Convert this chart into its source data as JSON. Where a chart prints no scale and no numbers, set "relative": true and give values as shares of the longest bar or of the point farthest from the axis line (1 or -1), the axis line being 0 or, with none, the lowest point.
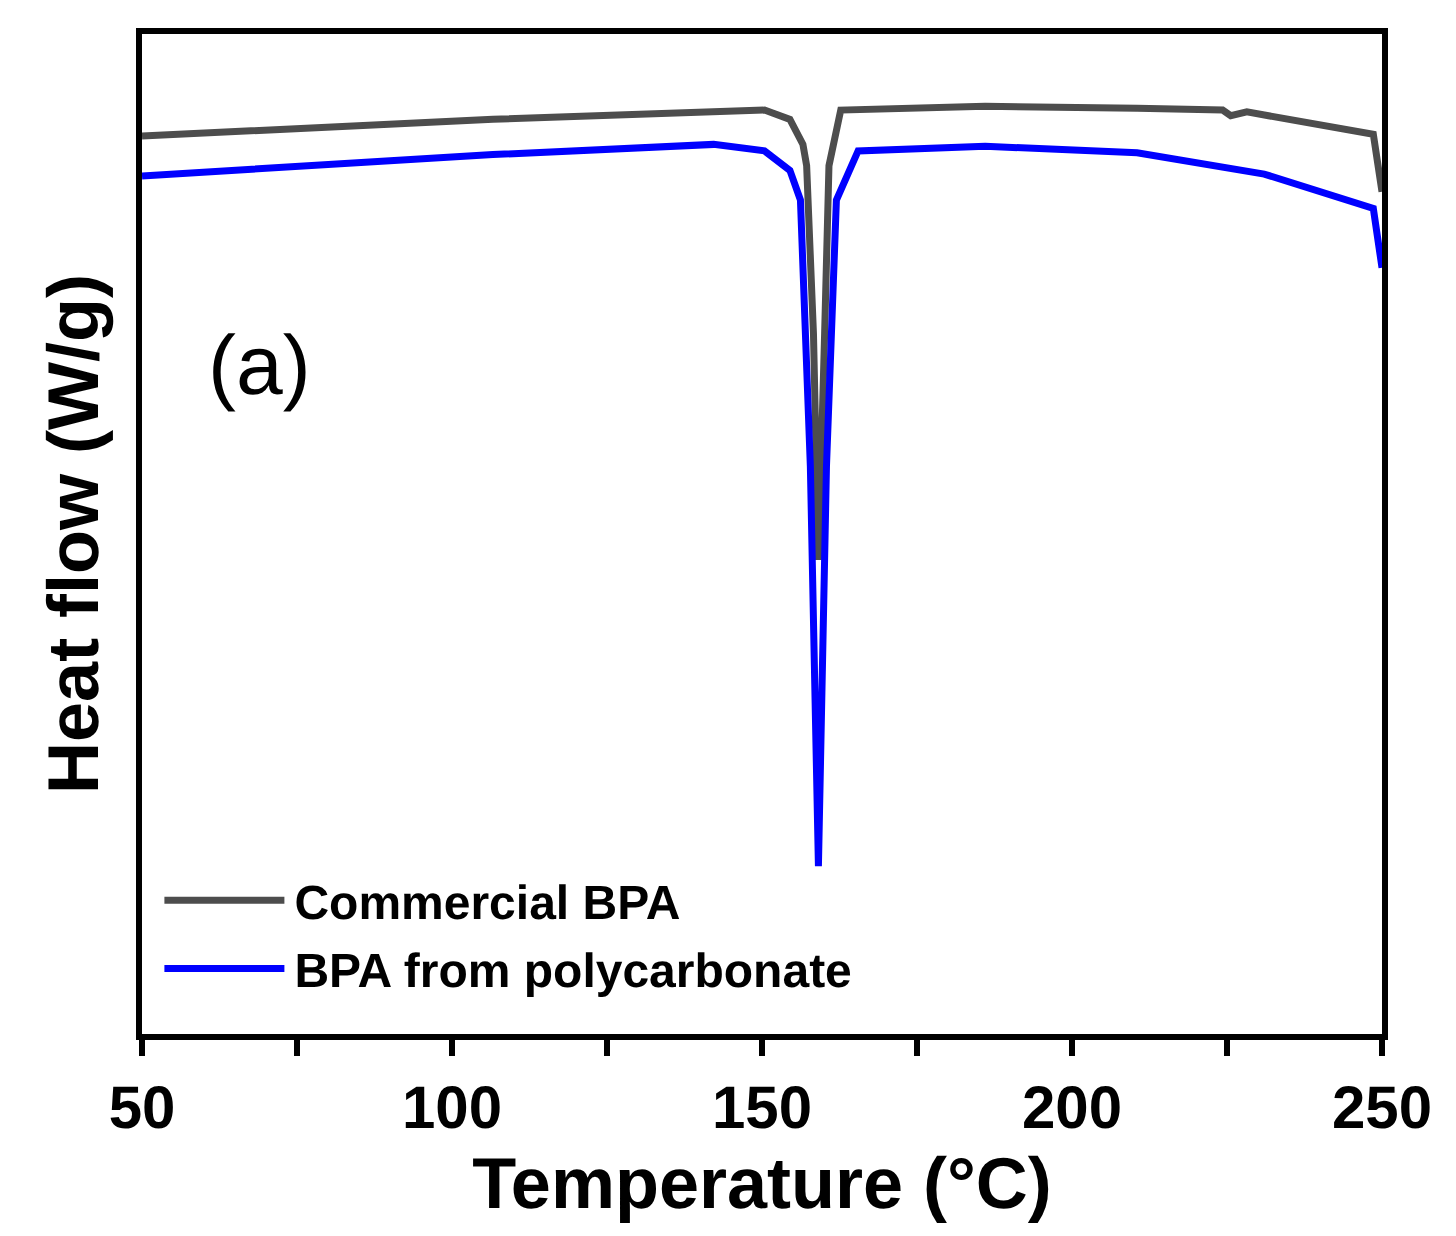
{
  "chart_data": {
    "type": "line",
    "relative": true,
    "xlabel": "Temperature (°C)",
    "ylabel": "Heat flow (W/g)",
    "annotations": [
      "(a)"
    ],
    "xlim": [
      50,
      250
    ],
    "xticks": [
      50,
      {
        "value": 75,
        "label": null
      },
      100,
      {
        "value": 125,
        "label": null
      },
      150,
      {
        "value": 175,
        "label": null
      },
      200,
      {
        "value": 225,
        "label": null
      },
      250
    ],
    "series": [
      {
        "name": "Commercial BPA",
        "color": "#4d4d4d",
        "x": [
          50,
          106.6,
          150.4,
          154.5,
          156.6,
          157.2,
          158.3,
          159.1,
          160.1,
          160.8,
          162.7,
          186,
          210.5,
          224.3,
          225.6,
          228.2,
          248.6,
          250
        ],
        "values": [
          0.968,
          0.986,
          0.996,
          0.986,
          0.959,
          0.936,
          0.755,
          0.511,
          0.755,
          0.936,
          0.996,
          1.0,
          0.998,
          0.996,
          0.99,
          0.994,
          0.97,
          0.908
        ]
      },
      {
        "name": "BPA from polycarbonate",
        "color": "#0000ff",
        "x": [
          50,
          106.6,
          142.2,
          150.4,
          154.5,
          156.2,
          157.8,
          159.1,
          160.4,
          162.0,
          165.5,
          186,
          210.5,
          231,
          248.6,
          250
        ],
        "values": [
          0.925,
          0.948,
          0.959,
          0.952,
          0.931,
          0.899,
          0.612,
          0.181,
          0.612,
          0.899,
          0.952,
          0.957,
          0.95,
          0.927,
          0.89,
          0.826
        ]
      }
    ],
    "legend": "bottom left",
    "line_style": "solid",
    "marker": "none"
  }
}
